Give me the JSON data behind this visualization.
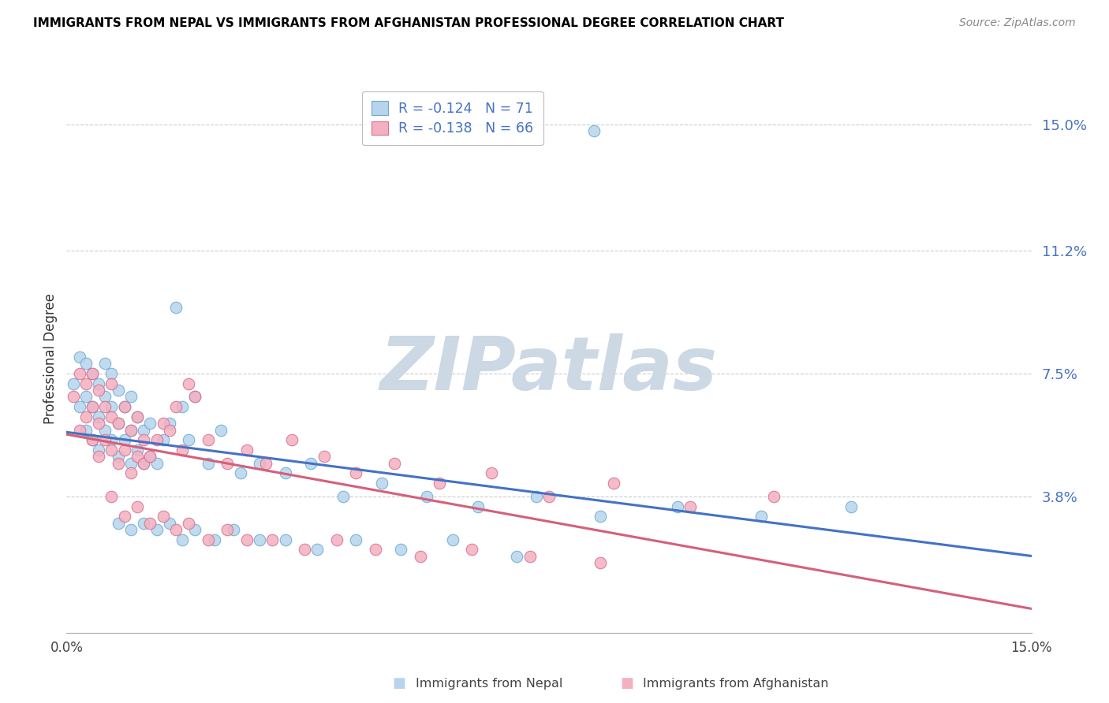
{
  "title": "IMMIGRANTS FROM NEPAL VS IMMIGRANTS FROM AFGHANISTAN PROFESSIONAL DEGREE CORRELATION CHART",
  "source": "Source: ZipAtlas.com",
  "ylabel": "Professional Degree",
  "series": [
    {
      "label": "Immigrants from Nepal",
      "R": -0.124,
      "N": 71,
      "color": "#b8d4ec",
      "edge_color": "#6aaad4",
      "trend_color": "#4472c4"
    },
    {
      "label": "Immigrants from Afghanistan",
      "R": -0.138,
      "N": 66,
      "color": "#f4b0c0",
      "edge_color": "#d47090",
      "trend_color": "#d4607a"
    }
  ],
  "xlim": [
    0.0,
    0.15
  ],
  "ylim": [
    -0.003,
    0.162
  ],
  "ytick_vals": [
    0.0,
    0.038,
    0.075,
    0.112,
    0.15
  ],
  "ytick_labels": [
    "",
    "3.8%",
    "7.5%",
    "11.2%",
    "15.0%"
  ],
  "watermark_color": "#ccd8e4",
  "nepal_x": [
    0.001,
    0.002,
    0.002,
    0.003,
    0.003,
    0.003,
    0.004,
    0.004,
    0.004,
    0.005,
    0.005,
    0.005,
    0.006,
    0.006,
    0.006,
    0.007,
    0.007,
    0.007,
    0.008,
    0.008,
    0.008,
    0.009,
    0.009,
    0.01,
    0.01,
    0.01,
    0.011,
    0.011,
    0.012,
    0.012,
    0.013,
    0.013,
    0.014,
    0.015,
    0.016,
    0.017,
    0.018,
    0.019,
    0.02,
    0.022,
    0.024,
    0.027,
    0.03,
    0.034,
    0.038,
    0.043,
    0.049,
    0.056,
    0.064,
    0.073,
    0.083,
    0.095,
    0.108,
    0.122,
    0.008,
    0.01,
    0.012,
    0.014,
    0.016,
    0.018,
    0.02,
    0.023,
    0.026,
    0.03,
    0.034,
    0.039,
    0.045,
    0.052,
    0.06,
    0.07,
    0.082
  ],
  "nepal_y": [
    0.072,
    0.065,
    0.08,
    0.058,
    0.068,
    0.078,
    0.055,
    0.065,
    0.075,
    0.052,
    0.062,
    0.072,
    0.058,
    0.068,
    0.078,
    0.055,
    0.065,
    0.075,
    0.05,
    0.06,
    0.07,
    0.055,
    0.065,
    0.048,
    0.058,
    0.068,
    0.052,
    0.062,
    0.048,
    0.058,
    0.05,
    0.06,
    0.048,
    0.055,
    0.06,
    0.095,
    0.065,
    0.055,
    0.068,
    0.048,
    0.058,
    0.045,
    0.048,
    0.045,
    0.048,
    0.038,
    0.042,
    0.038,
    0.035,
    0.038,
    0.032,
    0.035,
    0.032,
    0.035,
    0.03,
    0.028,
    0.03,
    0.028,
    0.03,
    0.025,
    0.028,
    0.025,
    0.028,
    0.025,
    0.025,
    0.022,
    0.025,
    0.022,
    0.025,
    0.02,
    0.148
  ],
  "afghan_x": [
    0.001,
    0.002,
    0.002,
    0.003,
    0.003,
    0.004,
    0.004,
    0.004,
    0.005,
    0.005,
    0.005,
    0.006,
    0.006,
    0.007,
    0.007,
    0.007,
    0.008,
    0.008,
    0.009,
    0.009,
    0.01,
    0.01,
    0.011,
    0.011,
    0.012,
    0.012,
    0.013,
    0.014,
    0.015,
    0.016,
    0.017,
    0.018,
    0.019,
    0.02,
    0.022,
    0.025,
    0.028,
    0.031,
    0.035,
    0.04,
    0.045,
    0.051,
    0.058,
    0.066,
    0.075,
    0.085,
    0.097,
    0.11,
    0.007,
    0.009,
    0.011,
    0.013,
    0.015,
    0.017,
    0.019,
    0.022,
    0.025,
    0.028,
    0.032,
    0.037,
    0.042,
    0.048,
    0.055,
    0.063,
    0.072,
    0.083
  ],
  "afghan_y": [
    0.068,
    0.058,
    0.075,
    0.062,
    0.072,
    0.055,
    0.065,
    0.075,
    0.05,
    0.06,
    0.07,
    0.055,
    0.065,
    0.052,
    0.062,
    0.072,
    0.048,
    0.06,
    0.052,
    0.065,
    0.045,
    0.058,
    0.05,
    0.062,
    0.048,
    0.055,
    0.05,
    0.055,
    0.06,
    0.058,
    0.065,
    0.052,
    0.072,
    0.068,
    0.055,
    0.048,
    0.052,
    0.048,
    0.055,
    0.05,
    0.045,
    0.048,
    0.042,
    0.045,
    0.038,
    0.042,
    0.035,
    0.038,
    0.038,
    0.032,
    0.035,
    0.03,
    0.032,
    0.028,
    0.03,
    0.025,
    0.028,
    0.025,
    0.025,
    0.022,
    0.025,
    0.022,
    0.02,
    0.022,
    0.02,
    0.018
  ]
}
